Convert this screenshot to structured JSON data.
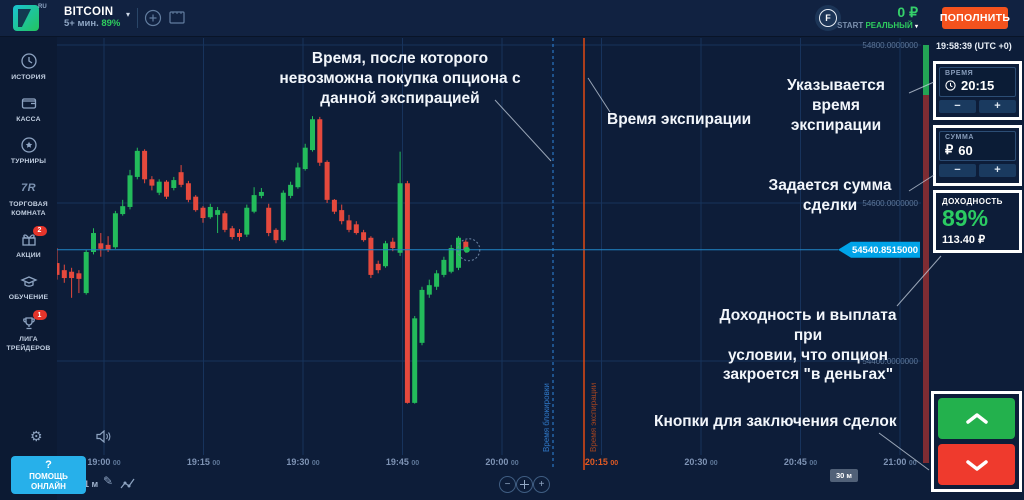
{
  "header": {
    "logo_badge": "RU",
    "asset_name": "BITCOIN",
    "asset_sub": "5+ мин.",
    "asset_percent": "89%",
    "caret": "▾",
    "fin_icon_letter": "F",
    "balance": "0 ₽",
    "account_prefix": "START",
    "account_type": "РЕАЛЬНЫЙ",
    "deposit_button": "ПОПОЛНИТЬ"
  },
  "sidebar": {
    "items": [
      {
        "label": "ИСТОРИЯ"
      },
      {
        "label": "КАССА"
      },
      {
        "label": "ТУРНИРЫ"
      },
      {
        "label": "ТОРГОВАЯ КОМНАТА",
        "icon_text": "7R"
      },
      {
        "label": "АКЦИИ",
        "badge": "2"
      },
      {
        "label": "ОБУЧЕНИЕ"
      },
      {
        "label": "ЛИГА ТРЕЙДЕРОВ",
        "badge": "1"
      }
    ],
    "help_q": "?",
    "help_label": "ПОМОЩЬ\nОНЛАЙН"
  },
  "clock": "19:58:39 (UTC +0)",
  "panel": {
    "time": {
      "label": "ВРЕМЯ",
      "value": "20:15",
      "minus": "−",
      "plus": "+"
    },
    "amount": {
      "label": "СУММА",
      "currency": "₽",
      "value": "60",
      "minus": "−",
      "plus": "+"
    },
    "payout": {
      "label": "ДОХОДНОСТЬ",
      "percent": "89%",
      "amount": "113.40 ₽"
    }
  },
  "chart_controls": {
    "timeframe": "1 м",
    "range": "30 м"
  },
  "annotations": [
    {
      "text": "Время, после которого\nневозможна покупка опциона с\nданной экспирацией"
    },
    {
      "text": "Время экспирации"
    },
    {
      "text": "Указывается время\nэкспирации"
    },
    {
      "text": "Задается сумма\nсделки"
    },
    {
      "text": "Доходность и выплата при\nусловии, что опцион\nзакроется \"в деньгах\""
    },
    {
      "text": "Кнопки для заключения сделок"
    }
  ],
  "chart_data": {
    "type": "candlestick",
    "title": "BITCOIN",
    "interval": "1m",
    "start_time": "18:53",
    "y_ticks": [
      "54800.0000000",
      "54600.0000000",
      "54400.0000000"
    ],
    "x_ticks": [
      {
        "label": "19:00",
        "sec": "00"
      },
      {
        "label": "19:15",
        "sec": "00"
      },
      {
        "label": "19:30",
        "sec": "00"
      },
      {
        "label": "19:45",
        "sec": "00"
      },
      {
        "label": "20:00",
        "sec": "00"
      },
      {
        "label": "20:15",
        "sec": "00",
        "highlighted": true
      },
      {
        "label": "20:30",
        "sec": "00"
      },
      {
        "label": "20:45",
        "sec": "00"
      },
      {
        "label": "21:00",
        "sec": "00"
      }
    ],
    "current_price": "54540.8515000",
    "purchase_deadline_label": "Время блокировки",
    "expiration_label": "Время экспирации",
    "colors": {
      "up": "#23bb5b",
      "down": "#e5493d",
      "price_line": "#2086c8",
      "price_tag": "#00a3e8",
      "deadline_line": "#2e86e0",
      "expiration_line": "#e04a12",
      "stripe_up": "#23a455",
      "stripe_down": "#7e2c33"
    },
    "candles": [
      [
        54524,
        54543,
        54503,
        54509
      ],
      [
        54515,
        54522,
        54499,
        54505
      ],
      [
        54513,
        54518,
        54480,
        54505
      ],
      [
        54511,
        54515,
        54486,
        54504
      ],
      [
        54486,
        54541,
        54484,
        54538
      ],
      [
        54538,
        54568,
        54535,
        54562
      ],
      [
        54549,
        54562,
        54532,
        54542
      ],
      [
        54547,
        54558,
        54538,
        54541
      ],
      [
        54544,
        54590,
        54542,
        54587
      ],
      [
        54586,
        54604,
        54584,
        54596
      ],
      [
        54595,
        54642,
        54592,
        54635
      ],
      [
        54633,
        54670,
        54630,
        54666
      ],
      [
        54666,
        54668,
        54625,
        54630
      ],
      [
        54630,
        54634,
        54616,
        54622
      ],
      [
        54613,
        54630,
        54610,
        54627
      ],
      [
        54627,
        54629,
        54605,
        54608
      ],
      [
        54619,
        54633,
        54616,
        54629
      ],
      [
        54639,
        54648,
        54620,
        54623
      ],
      [
        54625,
        54628,
        54601,
        54604
      ],
      [
        54608,
        54610,
        54589,
        54591
      ],
      [
        54594,
        54596,
        54575,
        54581
      ],
      [
        54582,
        54599,
        54580,
        54595
      ],
      [
        54585,
        54595,
        54562,
        54591
      ],
      [
        54587,
        54590,
        54563,
        54566
      ],
      [
        54568,
        54571,
        54554,
        54557
      ],
      [
        54562,
        54567,
        54552,
        54557
      ],
      [
        54560,
        54598,
        54557,
        54594
      ],
      [
        54589,
        54620,
        54587,
        54610
      ],
      [
        54609,
        54619,
        54606,
        54614
      ],
      [
        54594,
        54599,
        54558,
        54562
      ],
      [
        54566,
        54568,
        54549,
        54553
      ],
      [
        54553,
        54616,
        54551,
        54613
      ],
      [
        54609,
        54627,
        54606,
        54623
      ],
      [
        54620,
        54651,
        54618,
        54645
      ],
      [
        54643,
        54675,
        54641,
        54670
      ],
      [
        54667,
        54710,
        54665,
        54706
      ],
      [
        54706,
        54709,
        54647,
        54651
      ],
      [
        54652,
        54654,
        54600,
        54604
      ],
      [
        54604,
        54605,
        54586,
        54589
      ],
      [
        54591,
        54598,
        54573,
        54577
      ],
      [
        54578,
        54585,
        54563,
        54566
      ],
      [
        54573,
        54577,
        54560,
        54562
      ],
      [
        54563,
        54566,
        54551,
        54553
      ],
      [
        54556,
        54558,
        54505,
        54509
      ],
      [
        54523,
        54527,
        54511,
        54515
      ],
      [
        54520,
        54552,
        54518,
        54549
      ],
      [
        54551,
        54556,
        54539,
        54543
      ],
      [
        54537,
        54665,
        54533,
        54625
      ],
      [
        54625,
        54628,
        54346,
        54347
      ],
      [
        54347,
        54457,
        54346,
        54454
      ],
      [
        54423,
        54494,
        54420,
        54490
      ],
      [
        54484,
        54503,
        54480,
        54496
      ],
      [
        54494,
        54515,
        54490,
        54511
      ],
      [
        54509,
        54532,
        54506,
        54528
      ],
      [
        54513,
        54547,
        54511,
        54543
      ],
      [
        54518,
        54558,
        54515,
        54556
      ],
      [
        54551,
        54553,
        54537,
        54541
      ]
    ]
  }
}
